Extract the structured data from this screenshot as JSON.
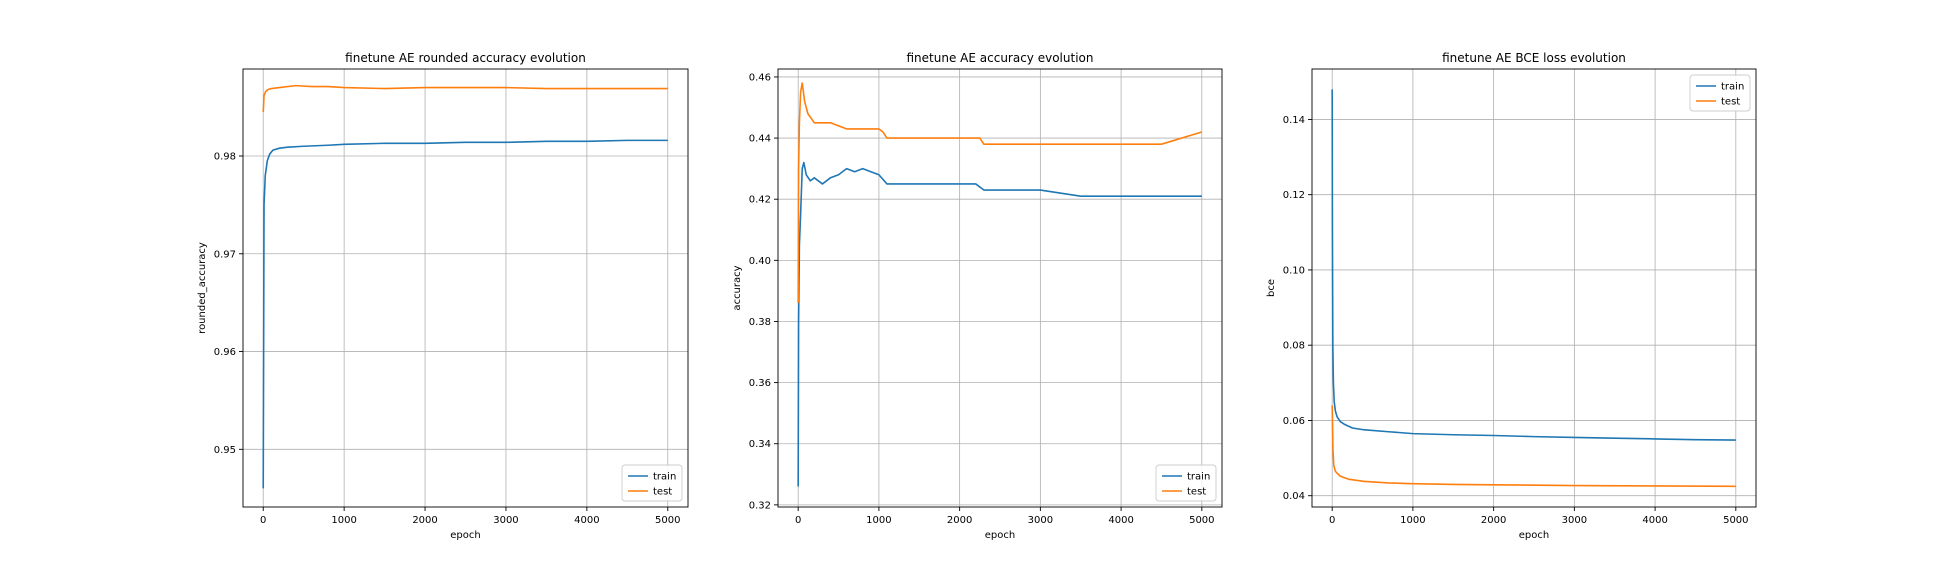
{
  "chart_data": [
    {
      "type": "line",
      "title": "finetune AE rounded accuracy evolution",
      "xlabel": "epoch",
      "ylabel": "rounded_accuracy",
      "xlim": [
        -250,
        5250
      ],
      "ylim": [
        0.9441,
        0.9889
      ],
      "xticks": [
        0,
        1000,
        2000,
        3000,
        4000,
        5000
      ],
      "yticks": [
        0.95,
        0.96,
        0.97,
        0.98
      ],
      "ytick_labels": [
        "0.95",
        "0.96",
        "0.97",
        "0.98"
      ],
      "grid": true,
      "legend": "lower right",
      "series": [
        {
          "name": "train",
          "color": "#1f77b4",
          "x": [
            0,
            10,
            25,
            50,
            80,
            120,
            200,
            300,
            500,
            800,
            1000,
            1500,
            2000,
            2500,
            3000,
            3500,
            4000,
            4500,
            5000
          ],
          "y": [
            0.946,
            0.975,
            0.978,
            0.9795,
            0.9802,
            0.9806,
            0.9808,
            0.9809,
            0.981,
            0.9811,
            0.9812,
            0.9813,
            0.9813,
            0.9814,
            0.9814,
            0.9815,
            0.9815,
            0.9816,
            0.9816
          ]
        },
        {
          "name": "test",
          "color": "#ff7f0e",
          "x": [
            0,
            10,
            30,
            60,
            100,
            200,
            400,
            600,
            800,
            1000,
            1500,
            2000,
            2500,
            3000,
            3500,
            4000,
            4500,
            5000
          ],
          "y": [
            0.9845,
            0.9862,
            0.9866,
            0.9868,
            0.9869,
            0.987,
            0.9872,
            0.9871,
            0.9871,
            0.987,
            0.9869,
            0.987,
            0.987,
            0.987,
            0.9869,
            0.9869,
            0.9869,
            0.9869
          ]
        }
      ]
    },
    {
      "type": "line",
      "title": "finetune AE accuracy evolution",
      "xlabel": "epoch",
      "ylabel": "accuracy",
      "xlim": [
        -250,
        5250
      ],
      "ylim": [
        0.3193,
        0.4626
      ],
      "xticks": [
        0,
        1000,
        2000,
        3000,
        4000,
        5000
      ],
      "yticks": [
        0.32,
        0.34,
        0.36,
        0.38,
        0.4,
        0.42,
        0.44,
        0.46
      ],
      "ytick_labels": [
        "0.32",
        "0.34",
        "0.36",
        "0.38",
        "0.40",
        "0.42",
        "0.44",
        "0.46"
      ],
      "grid": true,
      "legend": "lower right",
      "series": [
        {
          "name": "train",
          "color": "#1f77b4",
          "x": [
            0,
            5,
            15,
            30,
            50,
            70,
            100,
            150,
            200,
            300,
            400,
            500,
            600,
            700,
            800,
            900,
            1000,
            1100,
            1200,
            1500,
            1800,
            2000,
            2200,
            2300,
            2600,
            3000,
            3500,
            4000,
            4500,
            5000
          ],
          "y": [
            0.326,
            0.38,
            0.405,
            0.415,
            0.43,
            0.432,
            0.428,
            0.426,
            0.427,
            0.425,
            0.427,
            0.428,
            0.43,
            0.429,
            0.43,
            0.429,
            0.428,
            0.425,
            0.425,
            0.425,
            0.425,
            0.425,
            0.425,
            0.423,
            0.423,
            0.423,
            0.421,
            0.421,
            0.421,
            0.421
          ]
        },
        {
          "name": "test",
          "color": "#ff7f0e",
          "x": [
            0,
            5,
            15,
            30,
            50,
            80,
            120,
            200,
            400,
            600,
            800,
            1000,
            1050,
            1100,
            1500,
            2000,
            2250,
            2300,
            3000,
            3500,
            4000,
            4500,
            5000
          ],
          "y": [
            0.386,
            0.43,
            0.445,
            0.455,
            0.458,
            0.452,
            0.448,
            0.445,
            0.445,
            0.443,
            0.443,
            0.443,
            0.442,
            0.44,
            0.44,
            0.44,
            0.44,
            0.438,
            0.438,
            0.438,
            0.438,
            0.438,
            0.442
          ]
        }
      ]
    },
    {
      "type": "line",
      "title": "finetune AE BCE loss evolution",
      "xlabel": "epoch",
      "ylabel": "bce",
      "xlim": [
        -250,
        5250
      ],
      "ylim": [
        0.037,
        0.1534
      ],
      "xticks": [
        0,
        1000,
        2000,
        3000,
        4000,
        5000
      ],
      "yticks": [
        0.04,
        0.06,
        0.08,
        0.1,
        0.12,
        0.14
      ],
      "ytick_labels": [
        "0.04",
        "0.06",
        "0.08",
        "0.10",
        "0.12",
        "0.14"
      ],
      "grid": true,
      "legend": "upper right",
      "series": [
        {
          "name": "train",
          "color": "#1f77b4",
          "x": [
            0,
            3,
            8,
            15,
            25,
            40,
            60,
            100,
            150,
            250,
            400,
            700,
            1000,
            1500,
            2000,
            2500,
            3000,
            3500,
            4000,
            4500,
            5000
          ],
          "y": [
            0.148,
            0.11,
            0.08,
            0.07,
            0.065,
            0.0625,
            0.061,
            0.0597,
            0.059,
            0.058,
            0.0575,
            0.057,
            0.0565,
            0.0562,
            0.056,
            0.0557,
            0.0555,
            0.0553,
            0.0551,
            0.0549,
            0.0548
          ]
        },
        {
          "name": "test",
          "color": "#ff7f0e",
          "x": [
            0,
            5,
            10,
            20,
            40,
            60,
            100,
            200,
            400,
            700,
            1000,
            1500,
            2000,
            3000,
            4000,
            5000
          ],
          "y": [
            0.064,
            0.058,
            0.052,
            0.048,
            0.0465,
            0.046,
            0.0452,
            0.0444,
            0.0438,
            0.0434,
            0.0432,
            0.043,
            0.0429,
            0.0427,
            0.0426,
            0.0425
          ]
        }
      ]
    }
  ]
}
